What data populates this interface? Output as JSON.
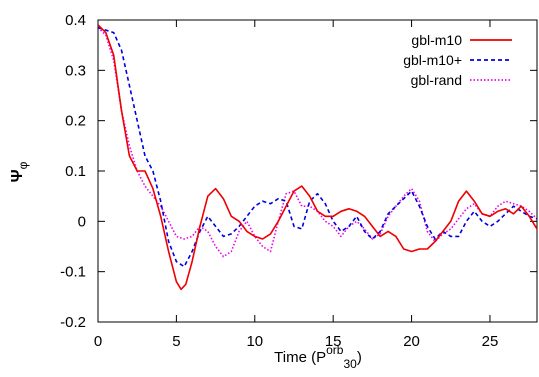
{
  "chart_data": {
    "type": "line",
    "xlabel": "Time (P",
    "xlabel_sup": "orb",
    "xlabel_sub": "30",
    "xlabel_close": ")",
    "ylabel": "Ψ",
    "ylabel_sub": "φ",
    "xlim": [
      0,
      28
    ],
    "ylim": [
      -0.2,
      0.4
    ],
    "xticks": [
      0,
      5,
      10,
      15,
      20,
      25
    ],
    "xtick_labels": [
      "0",
      "5",
      "10",
      "15",
      "20",
      "25"
    ],
    "yticks": [
      -0.2,
      -0.1,
      0,
      0.1,
      0.2,
      0.3,
      0.4
    ],
    "ytick_labels": [
      "-0.2",
      "-0.1",
      "0",
      "0.1",
      "0.2",
      "0.3",
      "0.4"
    ],
    "grid": false,
    "legend_position": "top-right",
    "series": [
      {
        "name": "gbl-m10",
        "color": "#ee0000",
        "dash": "solid",
        "x": [
          0,
          0.5,
          1,
          1.5,
          2,
          2.5,
          3,
          3.5,
          4,
          4.5,
          5,
          5.3,
          5.6,
          6,
          6.5,
          7,
          7.5,
          8,
          8.5,
          9,
          9.5,
          10,
          10.5,
          11,
          11.5,
          12,
          12.5,
          13,
          13.5,
          14,
          14.5,
          15,
          15.5,
          16,
          16.5,
          17,
          17.5,
          18,
          18.5,
          19,
          19.5,
          20,
          20.5,
          21,
          21.5,
          22,
          22.5,
          23,
          23.5,
          24,
          24.5,
          25,
          25.5,
          26,
          26.5,
          27,
          27.5,
          28
        ],
        "y": [
          0.39,
          0.375,
          0.33,
          0.22,
          0.13,
          0.1,
          0.1,
          0.065,
          0.01,
          -0.06,
          -0.12,
          -0.135,
          -0.125,
          -0.08,
          -0.01,
          0.05,
          0.065,
          0.045,
          0.01,
          0.0,
          -0.02,
          -0.03,
          -0.035,
          -0.025,
          0.0,
          0.03,
          0.06,
          0.07,
          0.05,
          0.02,
          0.01,
          0.01,
          0.02,
          0.025,
          0.02,
          0.01,
          -0.01,
          -0.03,
          -0.02,
          -0.03,
          -0.055,
          -0.06,
          -0.055,
          -0.055,
          -0.04,
          -0.02,
          0.0,
          0.04,
          0.06,
          0.04,
          0.015,
          0.01,
          0.02,
          0.025,
          0.015,
          0.03,
          0.01,
          -0.015
        ]
      },
      {
        "name": "gbl-m10+",
        "color": "#0000dd",
        "dash": "4,3",
        "x": [
          0,
          0.5,
          1,
          1.5,
          2,
          2.5,
          3,
          3.5,
          4,
          4.5,
          5,
          5.5,
          6,
          6.5,
          7,
          7.5,
          8,
          8.5,
          9,
          9.5,
          10,
          10.5,
          11,
          11.5,
          12,
          12.5,
          13,
          13.5,
          14,
          14.5,
          15,
          15.5,
          16,
          16.5,
          17,
          17.5,
          18,
          18.5,
          19,
          19.5,
          20,
          20.5,
          21,
          21.5,
          22,
          22.5,
          23,
          23.5,
          24,
          24.5,
          25,
          25.5,
          26,
          26.5,
          27,
          27.5,
          28
        ],
        "y": [
          0.385,
          0.38,
          0.375,
          0.34,
          0.27,
          0.2,
          0.13,
          0.1,
          0.04,
          -0.04,
          -0.08,
          -0.09,
          -0.06,
          -0.02,
          0.01,
          -0.01,
          -0.03,
          -0.025,
          -0.01,
          0.01,
          0.03,
          0.04,
          0.035,
          0.045,
          0.04,
          -0.01,
          -0.015,
          0.04,
          0.055,
          0.035,
          0.0,
          -0.02,
          -0.01,
          0.01,
          -0.02,
          -0.035,
          -0.02,
          0.015,
          0.03,
          0.045,
          0.06,
          0.03,
          -0.01,
          -0.035,
          -0.02,
          -0.03,
          -0.03,
          0.0,
          0.02,
          0.0,
          -0.01,
          0.0,
          0.015,
          0.03,
          0.02,
          0.01,
          0.005
        ]
      },
      {
        "name": "gbl-rand",
        "color": "#ee00ee",
        "dash": "1.5,2",
        "x": [
          0,
          0.5,
          1,
          1.5,
          2,
          2.5,
          3,
          3.5,
          4,
          4.5,
          5,
          5.5,
          6,
          6.5,
          7,
          7.5,
          8,
          8.5,
          9,
          9.5,
          10,
          10.5,
          11,
          11.5,
          12,
          12.5,
          13,
          13.5,
          14,
          14.5,
          15,
          15.5,
          16,
          16.5,
          17,
          17.5,
          18,
          18.5,
          19,
          19.5,
          20,
          20.5,
          21,
          21.5,
          22,
          22.5,
          23,
          23.5,
          24,
          24.5,
          25,
          25.5,
          26,
          26.5,
          27,
          27.5,
          28
        ],
        "y": [
          0.385,
          0.37,
          0.32,
          0.22,
          0.15,
          0.1,
          0.07,
          0.05,
          0.03,
          0.0,
          -0.03,
          -0.035,
          -0.03,
          -0.01,
          -0.02,
          -0.05,
          -0.07,
          -0.06,
          -0.02,
          0.0,
          -0.03,
          -0.05,
          -0.06,
          0.0,
          0.055,
          0.06,
          0.03,
          0.03,
          0.02,
          0.0,
          -0.01,
          -0.03,
          -0.01,
          0.0,
          -0.015,
          -0.035,
          -0.025,
          0.01,
          0.03,
          0.05,
          0.065,
          0.04,
          -0.02,
          -0.04,
          -0.025,
          -0.015,
          0.005,
          0.025,
          0.035,
          0.015,
          0.01,
          0.03,
          0.04,
          0.035,
          0.03,
          0.02,
          0.005
        ]
      }
    ]
  }
}
